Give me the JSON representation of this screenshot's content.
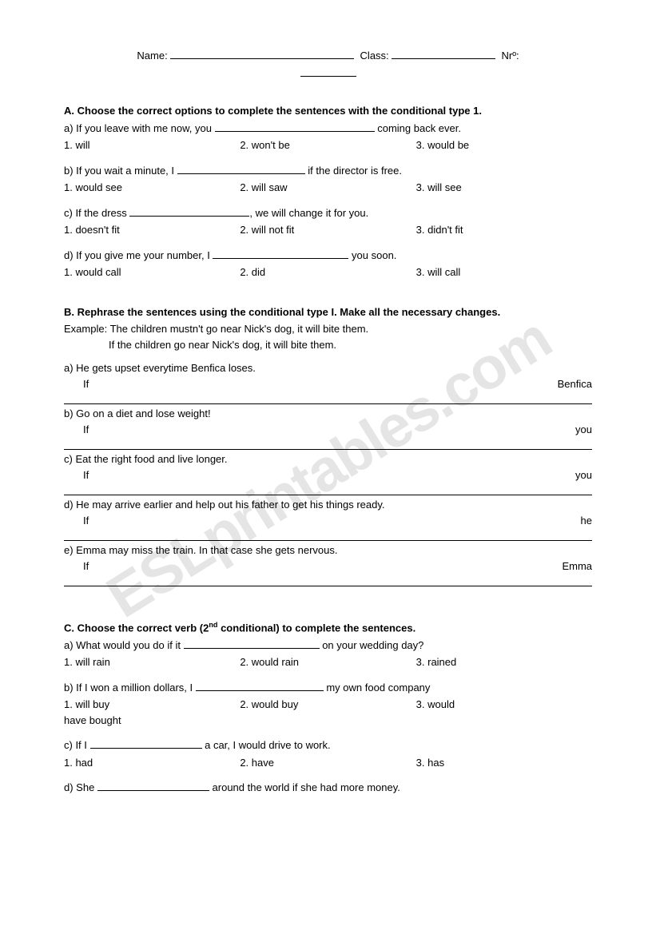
{
  "watermark": "ESLprintables.com",
  "header": {
    "name_label": "Name:",
    "class_label": "Class:",
    "num_label": "Nrº:",
    "name_underline_w": 230,
    "class_underline_w": 130,
    "num_underline_w": 70
  },
  "sectionA": {
    "title": "A. Choose the correct options to complete the sentences with the conditional type 1.",
    "items": [
      {
        "prefix": "a) If you leave with me now, you ",
        "blank_w": 200,
        "suffix": " coming back ever.",
        "o1": "1. will",
        "o2": "2. won't be",
        "o3": "3. would be"
      },
      {
        "prefix": "b) If you wait  a minute, I ",
        "blank_w": 160,
        "suffix": " if the director is free.",
        "o1": "1. would see",
        "o2": "2. will saw",
        "o3": "3. will see"
      },
      {
        "prefix": "c) If the dress ",
        "blank_w": 150,
        "suffix": ", we will change it for you.",
        "o1": "1. doesn't fit",
        "o2": "2. will not fit",
        "o3": "3. didn't fit"
      },
      {
        "prefix": "d) If you give me your number, I ",
        "blank_w": 170,
        "suffix": " you soon.",
        "o1": "1. would call",
        "o2": "2. did",
        "o3": "3. will call"
      }
    ]
  },
  "sectionB": {
    "title": "B. Rephrase the sentences using the conditional type I. Make all the necessary changes.",
    "example_line1": "Example: The children mustn't go near Nick's dog, it will bite them.",
    "example_line2": "If the children go near Nick's dog, it will bite them.",
    "items": [
      {
        "prompt": "a) He gets upset everytime Benfica loses.",
        "if": "If",
        "end": "Benfica"
      },
      {
        "prompt": "b) Go on a diet and lose weight!",
        "if": "If",
        "end": "you"
      },
      {
        "prompt": "c) Eat the right food and live longer.",
        "if": "If",
        "end": "you"
      },
      {
        "prompt": "d) He may arrive earlier and help out his father to get his things ready.",
        "if": "If",
        "end": "he"
      },
      {
        "prompt": "e) Emma may miss the train. In that case she gets nervous.",
        "if": "If",
        "end": "Emma"
      }
    ]
  },
  "sectionC": {
    "title_prefix": "C. Choose the correct verb (2",
    "title_sup": "nd",
    "title_suffix": " conditional) to complete the sentences.",
    "items": [
      {
        "prefix": "a) What would you do if it ",
        "blank_w": 170,
        "suffix": " on your wedding day?",
        "o1": "1. will rain",
        "o2": "2. would rain",
        "o3": "3. rained",
        "has_wrap": false
      },
      {
        "prefix": "b) If I won a million dollars, I ",
        "blank_w": 160,
        "suffix": " my own food company",
        "o1": "1. will buy",
        "o2": "2. would buy",
        "o3": "3. would",
        "has_wrap": true,
        "wrap": "have bought"
      },
      {
        "prefix": "c) If I ",
        "blank_w": 140,
        "suffix": " a car, I would drive to work.",
        "o1": "1. had",
        "o2": "2. have",
        "o3": "3. has",
        "has_wrap": false
      },
      {
        "prefix": "d) She ",
        "blank_w": 140,
        "suffix": " around the world if she had more money.",
        "o1": "",
        "o2": "",
        "o3": "",
        "no_opts": true
      }
    ]
  },
  "style": {
    "text_color": "#000000",
    "bg_color": "#ffffff",
    "font_size_pt": 10,
    "watermark_color": "rgba(0,0,0,0.10)"
  }
}
